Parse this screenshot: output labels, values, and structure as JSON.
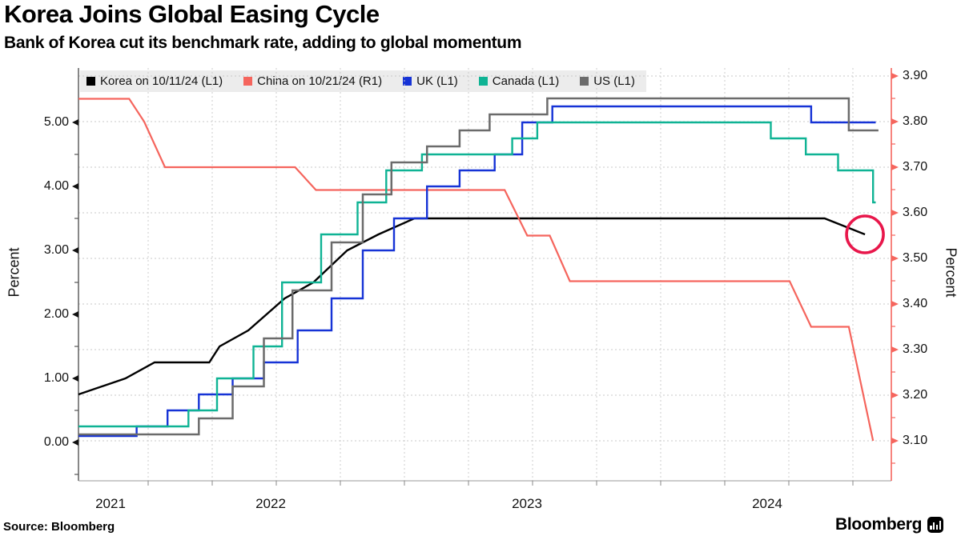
{
  "header": {
    "title": "Korea Joins Global Easing Cycle",
    "subtitle": "Bank of Korea cut its benchmark rate, adding to global momentum"
  },
  "legend": {
    "items": [
      {
        "label": "Korea on 10/11/24 (L1)",
        "color": "#000000"
      },
      {
        "label": "China on 10/21/24 (R1)",
        "color": "#f5655d"
      },
      {
        "label": "UK (L1)",
        "color": "#1633d6"
      },
      {
        "label": "Canada (L1)",
        "color": "#0fb394"
      },
      {
        "label": "US (L1)",
        "color": "#6b6b6b"
      }
    ]
  },
  "left_axis": {
    "label": "Percent",
    "ticks": [
      "5.00",
      "4.00",
      "3.00",
      "2.00",
      "1.00",
      "0.00"
    ],
    "range": [
      0.0,
      5.5
    ]
  },
  "right_axis": {
    "label": "Percent",
    "ticks": [
      "3.90",
      "3.80",
      "3.70",
      "3.60",
      "3.50",
      "3.40",
      "3.30",
      "3.20",
      "3.10"
    ],
    "range": [
      3.05,
      3.92
    ],
    "color": "#f5655d"
  },
  "x_axis": {
    "ticks": [
      "2021",
      "2022",
      "2023",
      "2024"
    ]
  },
  "footer": {
    "source": "Source: Bloomberg",
    "brand": "Bloomberg",
    "brand_icon": "bar-chart-icon"
  },
  "chart_data": {
    "type": "line",
    "x_unit": "decimal_year",
    "x_range": [
      2021.65,
      2024.95
    ],
    "left_ylim": [
      0.0,
      5.5
    ],
    "right_ylim": [
      3.05,
      3.92
    ],
    "grid": true,
    "legend_position": "top",
    "series": [
      {
        "name": "Korea",
        "axis": "L1",
        "color": "#000000",
        "style": "line",
        "width": 2.4,
        "points": [
          [
            2021.65,
            0.75
          ],
          [
            2021.9,
            1.0
          ],
          [
            2022.04,
            1.25
          ],
          [
            2022.25,
            1.25
          ],
          [
            2022.29,
            1.5
          ],
          [
            2022.4,
            1.75
          ],
          [
            2022.54,
            2.25
          ],
          [
            2022.65,
            2.5
          ],
          [
            2022.78,
            3.0
          ],
          [
            2022.9,
            3.25
          ],
          [
            2023.04,
            3.5
          ],
          [
            2024.63,
            3.5
          ],
          [
            2024.78,
            3.25
          ]
        ]
      },
      {
        "name": "China",
        "axis": "R1",
        "color": "#f5655d",
        "style": "line",
        "width": 2.2,
        "points": [
          [
            2021.65,
            3.85
          ],
          [
            2021.92,
            3.85
          ],
          [
            2022.0,
            3.8
          ],
          [
            2022.08,
            3.7
          ],
          [
            2022.58,
            3.7
          ],
          [
            2022.66,
            3.65
          ],
          [
            2023.4,
            3.65
          ],
          [
            2023.49,
            3.55
          ],
          [
            2023.58,
            3.55
          ],
          [
            2023.66,
            3.45
          ],
          [
            2024.5,
            3.45
          ],
          [
            2024.58,
            3.35
          ],
          [
            2024.72,
            3.35
          ],
          [
            2024.81,
            3.1
          ]
        ]
      },
      {
        "name": "UK",
        "axis": "L1",
        "color": "#1633d6",
        "style": "step",
        "width": 2.4,
        "points": [
          [
            2021.65,
            0.1
          ],
          [
            2021.96,
            0.25
          ],
          [
            2022.09,
            0.5
          ],
          [
            2022.21,
            0.75
          ],
          [
            2022.34,
            1.0
          ],
          [
            2022.46,
            1.25
          ],
          [
            2022.59,
            1.75
          ],
          [
            2022.72,
            2.25
          ],
          [
            2022.84,
            3.0
          ],
          [
            2022.96,
            3.5
          ],
          [
            2023.09,
            4.0
          ],
          [
            2023.22,
            4.25
          ],
          [
            2023.36,
            4.5
          ],
          [
            2023.47,
            5.0
          ],
          [
            2023.59,
            5.25
          ],
          [
            2024.58,
            5.0
          ],
          [
            2024.82,
            5.0
          ]
        ]
      },
      {
        "name": "Canada",
        "axis": "L1",
        "color": "#0fb394",
        "style": "step",
        "width": 2.4,
        "points": [
          [
            2021.65,
            0.25
          ],
          [
            2022.17,
            0.5
          ],
          [
            2022.28,
            1.0
          ],
          [
            2022.42,
            1.5
          ],
          [
            2022.53,
            2.5
          ],
          [
            2022.68,
            3.25
          ],
          [
            2022.82,
            3.75
          ],
          [
            2022.93,
            4.25
          ],
          [
            2023.07,
            4.5
          ],
          [
            2023.43,
            4.75
          ],
          [
            2023.53,
            5.0
          ],
          [
            2024.43,
            4.75
          ],
          [
            2024.56,
            4.5
          ],
          [
            2024.68,
            4.25
          ],
          [
            2024.81,
            3.75
          ],
          [
            2024.82,
            3.75
          ]
        ]
      },
      {
        "name": "US",
        "axis": "L1",
        "color": "#6b6b6b",
        "style": "step",
        "width": 2.5,
        "points": [
          [
            2021.65,
            0.125
          ],
          [
            2022.21,
            0.375
          ],
          [
            2022.34,
            0.875
          ],
          [
            2022.46,
            1.625
          ],
          [
            2022.57,
            2.375
          ],
          [
            2022.72,
            3.125
          ],
          [
            2022.84,
            3.875
          ],
          [
            2022.95,
            4.375
          ],
          [
            2023.09,
            4.625
          ],
          [
            2023.22,
            4.875
          ],
          [
            2023.34,
            5.125
          ],
          [
            2023.57,
            5.375
          ],
          [
            2024.72,
            4.875
          ],
          [
            2024.83,
            4.875
          ]
        ]
      }
    ],
    "annotation": {
      "type": "circle",
      "series": "Korea",
      "axis": "L1",
      "date": 2024.78,
      "value": 3.25,
      "color": "#e8174b"
    }
  }
}
